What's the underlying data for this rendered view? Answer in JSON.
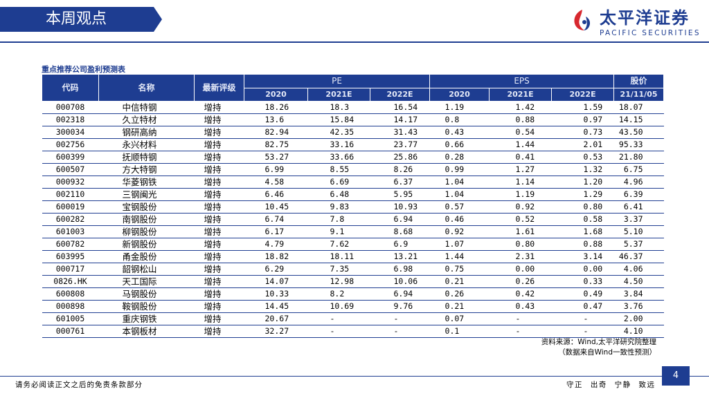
{
  "header": {
    "title": "本周观点",
    "logo_cn": "太平洋证券",
    "logo_en": "PACIFIC SECURITIES"
  },
  "table": {
    "title": "重点推荐公司盈利预测表",
    "headers": {
      "code": "代码",
      "name": "名称",
      "rating": "最新评级",
      "pe": "PE",
      "eps": "EPS",
      "price": "股价",
      "pe_years": [
        "2020",
        "2021E",
        "2022E"
      ],
      "eps_years": [
        "2020",
        "2021E",
        "2022E"
      ],
      "price_date": "21/11/05"
    },
    "rows": [
      {
        "code": "000708",
        "name": "中信特钢",
        "rating": "增持",
        "pe": [
          "18.26",
          "18.3",
          "16.54"
        ],
        "eps": [
          "1.19",
          "1.42",
          "1.59"
        ],
        "price": "18.07"
      },
      {
        "code": "002318",
        "name": "久立特材",
        "rating": "增持",
        "pe": [
          "13.6",
          "15.84",
          "14.17"
        ],
        "eps": [
          "0.8",
          "0.88",
          "0.97"
        ],
        "price": "14.15"
      },
      {
        "code": "300034",
        "name": "钢研高纳",
        "rating": "增持",
        "pe": [
          "82.94",
          "42.35",
          "31.43"
        ],
        "eps": [
          "0.43",
          "0.54",
          "0.73"
        ],
        "price": "43.50"
      },
      {
        "code": "002756",
        "name": "永兴材料",
        "rating": "增持",
        "pe": [
          "82.75",
          "33.16",
          "23.77"
        ],
        "eps": [
          "0.66",
          "1.44",
          "2.01"
        ],
        "price": "95.33"
      },
      {
        "code": "600399",
        "name": "抚顺特钢",
        "rating": "增持",
        "pe": [
          "53.27",
          "33.66",
          "25.86"
        ],
        "eps": [
          "0.28",
          "0.41",
          "0.53"
        ],
        "price": "21.80"
      },
      {
        "code": "600507",
        "name": "方大特钢",
        "rating": "增持",
        "pe": [
          "6.99",
          "8.55",
          "8.26"
        ],
        "eps": [
          "0.99",
          "1.27",
          "1.32"
        ],
        "price": "6.75"
      },
      {
        "code": "000932",
        "name": "华菱钢铁",
        "rating": "增持",
        "pe": [
          "4.58",
          "6.69",
          "6.37"
        ],
        "eps": [
          "1.04",
          "1.14",
          "1.20"
        ],
        "price": "4.96"
      },
      {
        "code": "002110",
        "name": "三钢闽光",
        "rating": "增持",
        "pe": [
          "6.46",
          "6.48",
          "5.95"
        ],
        "eps": [
          "1.04",
          "1.19",
          "1.29"
        ],
        "price": "6.39"
      },
      {
        "code": "600019",
        "name": "宝钢股份",
        "rating": "增持",
        "pe": [
          "10.45",
          "9.83",
          "10.93"
        ],
        "eps": [
          "0.57",
          "0.92",
          "0.80"
        ],
        "price": "6.41"
      },
      {
        "code": "600282",
        "name": "南钢股份",
        "rating": "增持",
        "pe": [
          "6.74",
          "7.8",
          "6.94"
        ],
        "eps": [
          "0.46",
          "0.52",
          "0.58"
        ],
        "price": "3.37"
      },
      {
        "code": "601003",
        "name": "柳钢股份",
        "rating": "增持",
        "pe": [
          "6.17",
          "9.1",
          "8.68"
        ],
        "eps": [
          "0.92",
          "1.61",
          "1.68"
        ],
        "price": "5.10"
      },
      {
        "code": "600782",
        "name": "新钢股份",
        "rating": "增持",
        "pe": [
          "4.79",
          "7.62",
          "6.9"
        ],
        "eps": [
          "1.07",
          "0.80",
          "0.88"
        ],
        "price": "5.37"
      },
      {
        "code": "603995",
        "name": "甬金股份",
        "rating": "增持",
        "pe": [
          "18.82",
          "18.11",
          "13.21"
        ],
        "eps": [
          "1.44",
          "2.31",
          "3.14"
        ],
        "price": "46.37"
      },
      {
        "code": "000717",
        "name": "韶钢松山",
        "rating": "增持",
        "pe": [
          "6.29",
          "7.35",
          "6.98"
        ],
        "eps": [
          "0.75",
          "0.00",
          "0.00"
        ],
        "price": "4.06"
      },
      {
        "code": "0826.HK",
        "name": "天工国际",
        "rating": "增持",
        "pe": [
          "14.07",
          "12.98",
          "10.06"
        ],
        "eps": [
          "0.21",
          "0.26",
          "0.33"
        ],
        "price": "4.50"
      },
      {
        "code": "600808",
        "name": "马钢股份",
        "rating": "增持",
        "pe": [
          "10.33",
          "8.2",
          "6.94"
        ],
        "eps": [
          "0.26",
          "0.42",
          "0.49"
        ],
        "price": "3.84"
      },
      {
        "code": "000898",
        "name": "鞍钢股份",
        "rating": "增持",
        "pe": [
          "14.45",
          "10.69",
          "9.76"
        ],
        "eps": [
          "0.21",
          "0.43",
          "0.47"
        ],
        "price": "3.76"
      },
      {
        "code": "601005",
        "name": "重庆钢铁",
        "rating": "增持",
        "pe": [
          "20.67",
          "-",
          "-"
        ],
        "eps": [
          "0.07",
          "-",
          "-"
        ],
        "price": "2.00"
      },
      {
        "code": "000761",
        "name": "本钢板材",
        "rating": "增持",
        "pe": [
          "32.27",
          "-",
          "-"
        ],
        "eps": [
          "0.1",
          "-",
          "-"
        ],
        "price": "4.10"
      }
    ],
    "source_line1": "资料来源：Wind,太平洋研究院整理",
    "source_line2": "（数据来自Wind一致性预测）"
  },
  "footer": {
    "disclaimer": "请务必阅读正文之后的免责条款部分",
    "slogan": "守正 出奇 宁静 致远",
    "page": "4"
  },
  "colors": {
    "brand_blue": "#1e3d91",
    "logo_red": "#d7282f"
  }
}
